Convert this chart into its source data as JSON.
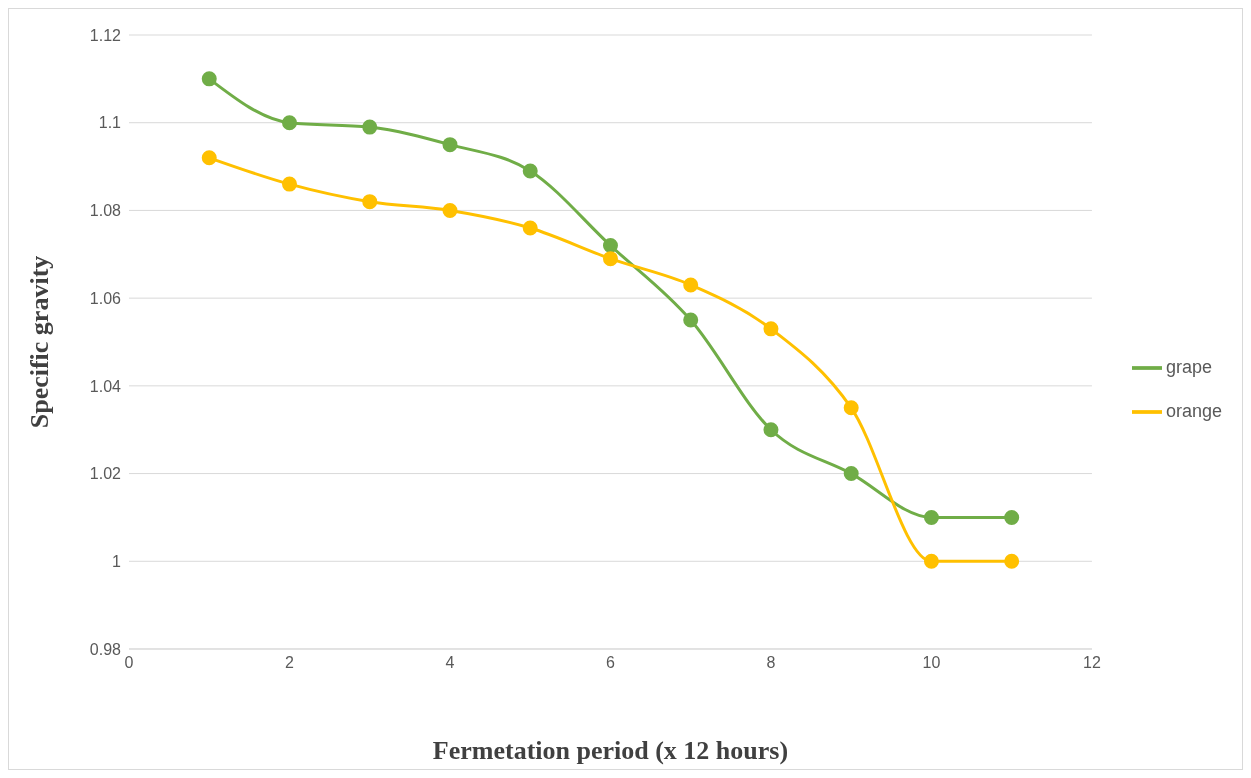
{
  "chart_data": {
    "type": "line",
    "xlabel": "Fermetation period (x 12 hours)",
    "ylabel": "Specific gravity",
    "x": [
      1,
      2,
      3,
      4,
      5,
      6,
      7,
      8,
      9,
      10,
      11
    ],
    "series": [
      {
        "name": "grape",
        "color": "#70ad47",
        "values": [
          1.11,
          1.1,
          1.099,
          1.095,
          1.089,
          1.072,
          1.055,
          1.03,
          1.02,
          1.01,
          1.01
        ]
      },
      {
        "name": "orange",
        "color": "#ffc000",
        "values": [
          1.092,
          1.086,
          1.082,
          1.08,
          1.076,
          1.069,
          1.063,
          1.053,
          1.035,
          1.0,
          1.0
        ]
      }
    ],
    "xlim": [
      0,
      12
    ],
    "xticks": [
      0,
      2,
      4,
      6,
      8,
      10,
      12
    ],
    "ylim": [
      0.98,
      1.12
    ],
    "yticks": [
      0.98,
      1.0,
      1.02,
      1.04,
      1.06,
      1.08,
      1.1,
      1.12
    ],
    "grid": "y",
    "legend": "right",
    "marker": "circle"
  }
}
